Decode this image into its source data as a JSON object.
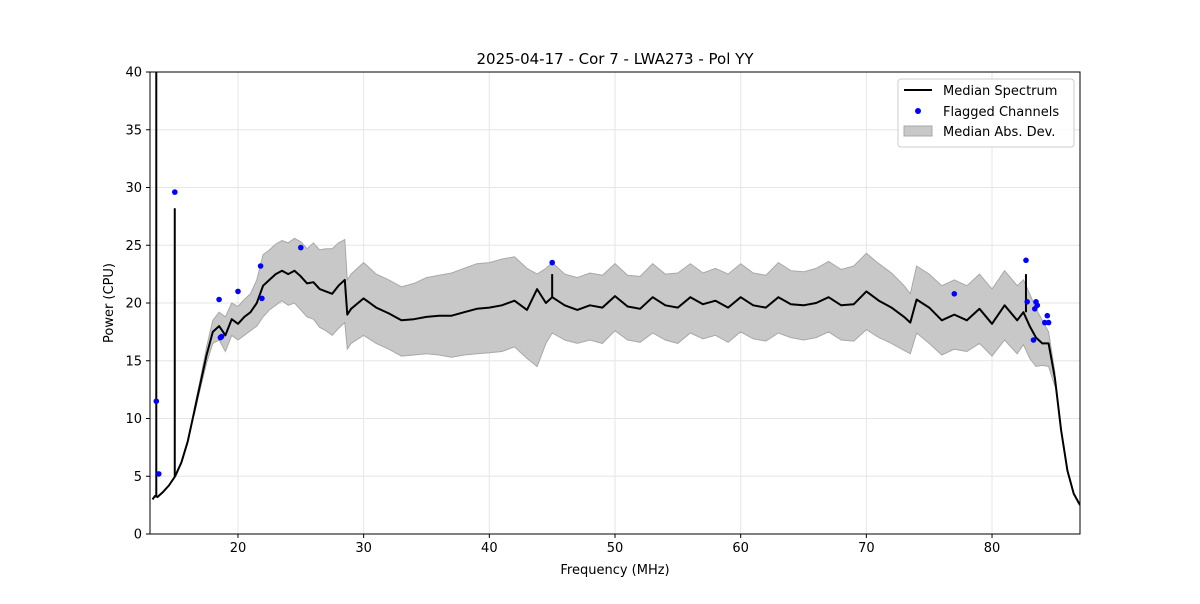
{
  "chart_data": {
    "type": "line",
    "title": "2025-04-17 - Cor 7 - LWA273 - Pol YY",
    "xlabel": "Frequency (MHz)",
    "ylabel": "Power (CPU)",
    "xlim": [
      13.0,
      87.0
    ],
    "ylim": [
      0,
      40
    ],
    "xticks": [
      20,
      30,
      40,
      50,
      60,
      70,
      80
    ],
    "yticks": [
      0,
      5,
      10,
      15,
      20,
      25,
      30,
      35,
      40
    ],
    "grid": true,
    "legend_position": "upper right",
    "legend": [
      {
        "label": "Median Spectrum",
        "kind": "line",
        "color": "#000000"
      },
      {
        "label": "Flagged Channels",
        "kind": "marker",
        "color": "#0000ff"
      },
      {
        "label": "Median Abs. Dev.",
        "kind": "patch",
        "color": "#c8c8c8"
      }
    ],
    "series": [
      {
        "name": "Median Spectrum",
        "color": "#000000",
        "x": [
          13.2,
          13.4,
          13.6,
          14.0,
          14.5,
          15.0,
          15.5,
          16.0,
          16.5,
          17.0,
          17.5,
          18.0,
          18.5,
          19.0,
          19.5,
          20.0,
          20.5,
          21.0,
          21.5,
          22.0,
          22.5,
          23.0,
          23.5,
          24.0,
          24.5,
          25.0,
          25.5,
          26.0,
          26.5,
          27.0,
          27.5,
          28.0,
          28.5,
          28.7,
          29.0,
          30.0,
          31.0,
          32.0,
          33.0,
          34.0,
          35.0,
          36.0,
          37.0,
          38.0,
          39.0,
          40.0,
          41.0,
          42.0,
          43.0,
          43.8,
          44.5,
          45.0,
          46.0,
          47.0,
          48.0,
          49.0,
          50.0,
          51.0,
          52.0,
          53.0,
          54.0,
          55.0,
          56.0,
          57.0,
          58.0,
          59.0,
          60.0,
          61.0,
          62.0,
          63.0,
          64.0,
          65.0,
          66.0,
          67.0,
          68.0,
          69.0,
          70.0,
          71.0,
          72.0,
          73.0,
          73.5,
          74.0,
          75.0,
          76.0,
          77.0,
          78.0,
          79.0,
          80.0,
          81.0,
          82.0,
          82.5,
          83.0,
          83.5,
          84.0,
          84.5,
          85.0,
          85.5,
          86.0,
          86.5,
          87.0
        ],
        "y": [
          3.0,
          3.3,
          3.2,
          3.6,
          4.2,
          5.0,
          6.2,
          8.0,
          10.5,
          13.0,
          15.5,
          17.5,
          18.0,
          17.2,
          18.6,
          18.2,
          18.8,
          19.2,
          20.0,
          21.5,
          22.0,
          22.5,
          22.8,
          22.5,
          22.8,
          22.3,
          21.7,
          21.8,
          21.2,
          21.0,
          20.8,
          21.5,
          22.0,
          19.0,
          19.5,
          20.4,
          19.6,
          19.1,
          18.5,
          18.6,
          18.8,
          18.9,
          18.9,
          19.2,
          19.5,
          19.6,
          19.8,
          20.2,
          19.4,
          21.2,
          20.0,
          20.5,
          19.8,
          19.4,
          19.8,
          19.6,
          20.6,
          19.7,
          19.5,
          20.5,
          19.8,
          19.6,
          20.5,
          19.9,
          20.2,
          19.6,
          20.5,
          19.8,
          19.6,
          20.5,
          19.9,
          19.8,
          20.0,
          20.5,
          19.8,
          19.9,
          21.0,
          20.2,
          19.6,
          18.8,
          18.3,
          20.3,
          19.6,
          18.5,
          19.0,
          18.5,
          19.5,
          18.2,
          19.8,
          18.5,
          19.2,
          18.0,
          17.0,
          16.5,
          16.5,
          13.5,
          9.0,
          5.5,
          3.5,
          2.5
        ]
      },
      {
        "name": "Flagged Channels",
        "color": "#0000ff",
        "type": "scatter",
        "x": [
          13.5,
          13.7,
          14.97,
          18.5,
          18.6,
          18.7,
          20.0,
          21.8,
          21.9,
          25.0,
          45.0,
          77.0,
          82.7,
          82.8,
          83.3,
          83.4,
          83.5,
          83.6,
          84.2,
          84.4,
          84.5
        ],
        "y": [
          11.5,
          5.2,
          29.6,
          20.3,
          17.0,
          17.1,
          21.0,
          23.2,
          20.4,
          24.8,
          23.5,
          20.8,
          23.7,
          20.1,
          16.8,
          19.5,
          20.1,
          19.8,
          18.3,
          18.9,
          18.3
        ]
      }
    ],
    "spikes": [
      {
        "x": 13.5,
        "y_top": 40.0
      },
      {
        "x": 14.97,
        "y_top": 28.2
      },
      {
        "x": 45.0,
        "y_top": 22.5
      },
      {
        "x": 82.7,
        "y_top": 22.5
      }
    ],
    "mad_band": {
      "name": "Median Abs. Dev.",
      "color": "#c8c8c8",
      "x": [
        16.5,
        17.0,
        17.5,
        18.0,
        18.5,
        19.0,
        19.5,
        20.0,
        20.5,
        21.0,
        21.5,
        22.0,
        22.5,
        23.0,
        23.5,
        24.0,
        24.5,
        25.0,
        25.5,
        26.0,
        26.5,
        27.0,
        27.5,
        28.0,
        28.5,
        28.7,
        29.0,
        30.0,
        31.0,
        32.0,
        33.0,
        34.0,
        35.0,
        36.0,
        37.0,
        38.0,
        39.0,
        40.0,
        41.0,
        42.0,
        43.0,
        43.8,
        44.5,
        45.0,
        46.0,
        47.0,
        48.0,
        49.0,
        50.0,
        51.0,
        52.0,
        53.0,
        54.0,
        55.0,
        56.0,
        57.0,
        58.0,
        59.0,
        60.0,
        61.0,
        62.0,
        63.0,
        64.0,
        65.0,
        66.0,
        67.0,
        68.0,
        69.0,
        70.0,
        71.0,
        72.0,
        73.0,
        73.5,
        74.0,
        75.0,
        76.0,
        77.0,
        78.0,
        79.0,
        80.0,
        81.0,
        82.0,
        82.5,
        83.0,
        83.5,
        84.0,
        84.5,
        85.0
      ],
      "upper": [
        10.8,
        13.4,
        16.2,
        18.5,
        19.2,
        18.8,
        20.0,
        19.7,
        20.3,
        20.8,
        22.0,
        24.2,
        24.6,
        25.1,
        25.4,
        25.2,
        25.6,
        25.3,
        24.7,
        25.2,
        24.6,
        24.7,
        24.7,
        25.2,
        25.5,
        22.0,
        22.5,
        23.5,
        22.5,
        22.0,
        21.4,
        21.7,
        22.2,
        22.4,
        22.6,
        23.0,
        23.4,
        23.5,
        23.8,
        24.0,
        23.0,
        22.5,
        23.0,
        23.5,
        22.5,
        22.2,
        22.6,
        22.4,
        23.4,
        22.4,
        22.3,
        23.4,
        22.5,
        22.6,
        23.4,
        22.6,
        23.0,
        22.5,
        23.4,
        22.6,
        22.4,
        23.5,
        22.8,
        22.7,
        23.0,
        23.6,
        22.9,
        23.2,
        24.3,
        23.4,
        22.6,
        21.5,
        20.8,
        23.2,
        22.5,
        21.5,
        22.0,
        21.5,
        22.5,
        21.2,
        22.8,
        21.5,
        22.0,
        20.8,
        19.5,
        18.5,
        17.5,
        14.0
      ],
      "lower": [
        10.2,
        12.6,
        14.8,
        16.5,
        16.8,
        15.8,
        17.2,
        16.8,
        17.2,
        17.6,
        18.0,
        18.8,
        19.4,
        19.8,
        20.2,
        19.8,
        20.0,
        19.4,
        18.8,
        18.6,
        17.9,
        17.6,
        17.2,
        17.8,
        18.3,
        16.0,
        16.5,
        17.2,
        16.5,
        16.0,
        15.4,
        15.5,
        15.6,
        15.5,
        15.3,
        15.5,
        15.6,
        15.7,
        15.8,
        16.2,
        15.2,
        14.5,
        16.5,
        17.4,
        16.8,
        16.5,
        16.8,
        16.5,
        17.6,
        16.8,
        16.6,
        17.4,
        16.8,
        16.5,
        17.4,
        16.9,
        17.2,
        16.6,
        17.5,
        16.9,
        16.7,
        17.4,
        17.0,
        16.8,
        17.0,
        17.5,
        16.8,
        16.7,
        17.7,
        17.0,
        16.5,
        15.9,
        15.6,
        17.4,
        16.5,
        15.5,
        16.0,
        15.8,
        16.5,
        15.4,
        16.8,
        15.6,
        16.4,
        15.2,
        14.5,
        14.6,
        14.5,
        12.8
      ]
    }
  }
}
